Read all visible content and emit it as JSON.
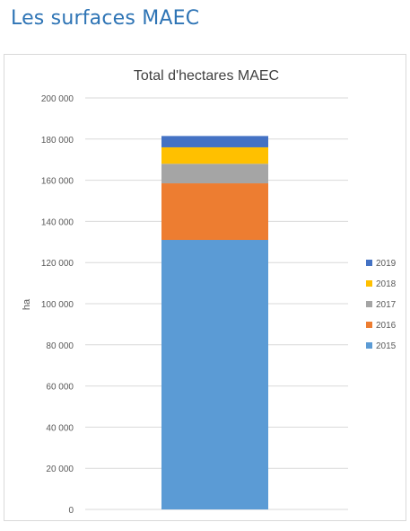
{
  "page": {
    "title": "Les surfaces MAEC"
  },
  "chart_data": {
    "type": "bar",
    "stacked": true,
    "title": "Total d'hectares MAEC",
    "xlabel": "",
    "ylabel": "ha",
    "ylim": [
      0,
      200000
    ],
    "yticks": [
      0,
      20000,
      40000,
      60000,
      80000,
      100000,
      120000,
      140000,
      160000,
      180000,
      200000
    ],
    "ytick_labels": [
      "0",
      "20 000",
      "40 000",
      "60 000",
      "80 000",
      "100 000",
      "120 000",
      "140 000",
      "160 000",
      "180 000",
      "200 000"
    ],
    "categories": [
      ""
    ],
    "series": [
      {
        "name": "2015",
        "values": [
          131000
        ],
        "color": "#5b9bd5"
      },
      {
        "name": "2016",
        "values": [
          27500
        ],
        "color": "#ed7d31"
      },
      {
        "name": "2017",
        "values": [
          9500
        ],
        "color": "#a5a5a5"
      },
      {
        "name": "2018",
        "values": [
          8000
        ],
        "color": "#ffc000"
      },
      {
        "name": "2019",
        "values": [
          5500
        ],
        "color": "#4472c4"
      }
    ],
    "legend_order": [
      "2019",
      "2018",
      "2017",
      "2016",
      "2015"
    ],
    "legend_position": "right",
    "grid": true
  }
}
